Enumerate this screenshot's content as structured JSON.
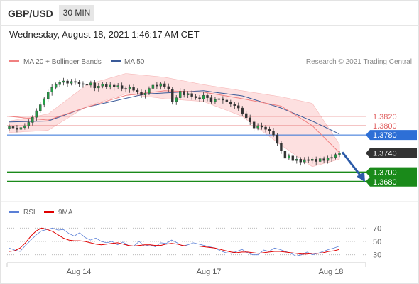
{
  "header": {
    "symbol": "GBP/USD",
    "timeframe": "30 MIN"
  },
  "timestamp": "Wednesday, August 18, 2021 1:46:17 AM CET",
  "copyright": "Research © 2021 Trading Central",
  "colors": {
    "ma20": "#f08080",
    "bands": "#fde0e0",
    "ma50": "#3a5a98",
    "resistance": "#e06060",
    "pivot": "#2d6fd6",
    "support": "#1a8a1a",
    "last": "#333333",
    "arrow": "#2b5aa8",
    "rsi": "#5a7fd6",
    "rsi_ma": "#e00000"
  },
  "chart_data": [
    {
      "type": "candlestick",
      "legend": [
        "MA 20 + Bollinger Bands",
        "MA 50"
      ],
      "x_labels": [
        "Aug 14",
        "Aug 17",
        "Aug 18"
      ],
      "ylim": [
        1.364,
        1.3925
      ],
      "levels": [
        {
          "label": "1.3820",
          "value": 1.382,
          "kind": "resistance"
        },
        {
          "label": "1.3800",
          "value": 1.38,
          "kind": "resistance"
        },
        {
          "label": "1.3780",
          "value": 1.378,
          "kind": "pivot"
        },
        {
          "label": "1.3740",
          "value": 1.3741,
          "kind": "last"
        },
        {
          "label": "1.3700",
          "value": 1.37,
          "kind": "support"
        },
        {
          "label": "1.3680",
          "value": 1.368,
          "kind": "support"
        }
      ],
      "close": [
        1.3798,
        1.3795,
        1.3792,
        1.3796,
        1.38,
        1.3807,
        1.3818,
        1.3832,
        1.3845,
        1.3858,
        1.3872,
        1.3882,
        1.3888,
        1.3893,
        1.3896,
        1.3891,
        1.3895,
        1.3893,
        1.389,
        1.3889,
        1.3887,
        1.3892,
        1.3881,
        1.3885,
        1.3889,
        1.3884,
        1.3887,
        1.3883,
        1.3886,
        1.388,
        1.3878,
        1.3882,
        1.3876,
        1.3872,
        1.3866,
        1.387,
        1.388,
        1.3887,
        1.3885,
        1.389,
        1.3884,
        1.3878,
        1.3852,
        1.386,
        1.3874,
        1.3866,
        1.3869,
        1.3863,
        1.386,
        1.3857,
        1.3865,
        1.386,
        1.3852,
        1.3856,
        1.3858,
        1.3855,
        1.3851,
        1.3846,
        1.3843,
        1.3838,
        1.3826,
        1.3817,
        1.3808,
        1.3795,
        1.38,
        1.3797,
        1.3792,
        1.3789,
        1.378,
        1.3762,
        1.3746,
        1.373,
        1.3735,
        1.3725,
        1.3728,
        1.3722,
        1.3727,
        1.3725,
        1.3728,
        1.3723,
        1.3729,
        1.3725,
        1.373,
        1.3732,
        1.3738,
        1.3741
      ],
      "ma20_points": [
        [
          0,
          1.382
        ],
        [
          10,
          1.3812
        ],
        [
          20,
          1.384
        ],
        [
          30,
          1.3865
        ],
        [
          40,
          1.3875
        ],
        [
          50,
          1.3872
        ],
        [
          60,
          1.3858
        ],
        [
          70,
          1.3842
        ],
        [
          78,
          1.38
        ],
        [
          85,
          1.3742
        ]
      ],
      "band_upper_points": [
        [
          0,
          1.381
        ],
        [
          10,
          1.3825
        ],
        [
          20,
          1.3888
        ],
        [
          30,
          1.3912
        ],
        [
          40,
          1.3904
        ],
        [
          50,
          1.3888
        ],
        [
          60,
          1.3875
        ],
        [
          70,
          1.3862
        ],
        [
          78,
          1.3848
        ],
        [
          85,
          1.376
        ]
      ],
      "band_lower_points": [
        [
          0,
          1.3785
        ],
        [
          10,
          1.379
        ],
        [
          20,
          1.3842
        ],
        [
          30,
          1.3868
        ],
        [
          40,
          1.3858
        ],
        [
          50,
          1.3852
        ],
        [
          60,
          1.382
        ],
        [
          70,
          1.3758
        ],
        [
          78,
          1.3712
        ],
        [
          85,
          1.3728
        ]
      ],
      "ma50_points": [
        [
          0,
          1.3808
        ],
        [
          10,
          1.381
        ],
        [
          20,
          1.384
        ],
        [
          35,
          1.3868
        ],
        [
          50,
          1.3875
        ],
        [
          60,
          1.3864
        ],
        [
          70,
          1.3838
        ],
        [
          78,
          1.381
        ],
        [
          85,
          1.3782
        ]
      ],
      "forecast_arrow": {
        "from": 1.3743,
        "to": 1.3682
      }
    },
    {
      "type": "line",
      "legend": [
        "RSI",
        "9MA"
      ],
      "yticks": [
        70,
        50,
        30
      ],
      "ylim": [
        20,
        80
      ],
      "rsi": [
        40,
        37,
        35,
        44,
        52,
        60,
        66,
        68,
        70,
        67,
        68,
        62,
        58,
        63,
        56,
        52,
        55,
        50,
        48,
        50,
        45,
        49,
        44,
        43,
        50,
        43,
        45,
        42,
        48,
        47,
        52,
        48,
        43,
        45,
        48,
        46,
        44,
        42,
        40,
        36,
        33,
        32,
        35,
        38,
        33,
        30,
        30,
        37,
        35,
        40,
        38,
        35,
        32,
        28,
        30,
        34,
        30,
        32,
        35,
        38,
        40,
        43
      ],
      "rsi_ma": [
        35,
        36,
        40,
        48,
        58,
        66,
        70,
        68,
        65,
        60,
        55,
        52,
        51,
        51,
        50,
        48,
        46,
        45,
        46,
        47,
        48,
        46,
        44,
        43,
        44,
        45,
        45,
        44,
        44,
        46,
        47,
        46,
        44,
        43,
        43,
        43,
        42,
        41,
        40,
        38,
        36,
        34,
        33,
        34,
        34,
        33,
        32,
        33,
        34,
        35,
        35,
        34,
        33,
        32,
        31,
        31,
        32,
        32,
        33,
        35,
        36,
        38
      ]
    }
  ]
}
